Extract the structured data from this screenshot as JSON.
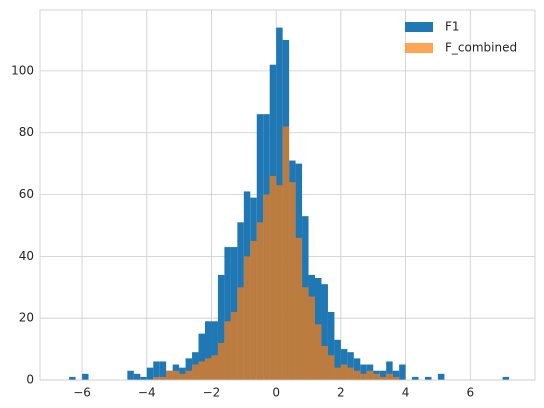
{
  "chart_data": {
    "type": "histogram",
    "series": [
      {
        "name": "F1",
        "color": "#1f77b4",
        "alpha": 1,
        "bins": [
          -6.6,
          -6.4,
          -6.2,
          -6.0,
          -5.8,
          -5.6,
          -5.4,
          -5.2,
          -5.0,
          -4.8,
          -4.6,
          -4.4,
          -4.2,
          -4.0,
          -3.8,
          -3.6,
          -3.4,
          -3.2,
          -3.0,
          -2.8,
          -2.6,
          -2.4,
          -2.2,
          -2.0,
          -1.8,
          -1.6,
          -1.4,
          -1.2,
          -1.0,
          -0.8,
          -0.6,
          -0.4,
          -0.2,
          0.0,
          0.2,
          0.4,
          0.6,
          0.8,
          1.0,
          1.2,
          1.4,
          1.6,
          1.8,
          2.0,
          2.2,
          2.4,
          2.6,
          2.8,
          3.0,
          3.2,
          3.4,
          3.6,
          3.8,
          4.0,
          4.2,
          4.4,
          4.6,
          4.8,
          5.0,
          5.2,
          5.4,
          5.6,
          5.8,
          6.0,
          6.2,
          6.4,
          6.6,
          6.8,
          7.0,
          7.2,
          7.4
        ],
        "values": [
          0,
          1,
          0,
          2,
          0,
          0,
          0,
          0,
          0,
          0,
          3,
          2,
          1,
          4,
          6,
          6,
          3,
          5,
          4,
          7,
          9,
          15,
          19,
          19,
          34,
          43,
          43,
          51,
          61,
          59,
          86,
          86,
          102,
          114,
          110,
          71,
          70,
          53,
          34,
          33,
          31,
          22,
          13,
          10,
          9,
          7,
          5,
          5,
          3,
          3,
          6,
          3,
          5,
          0,
          1,
          0,
          1,
          0,
          2,
          0,
          0,
          0,
          0,
          0,
          0,
          0,
          0,
          0,
          1,
          0
        ]
      },
      {
        "name": "F_combined",
        "color": "#ff7f0e",
        "alpha": 0.7,
        "bins": [
          -4.0,
          -3.8,
          -3.6,
          -3.4,
          -3.2,
          -3.0,
          -2.8,
          -2.6,
          -2.4,
          -2.2,
          -2.0,
          -1.8,
          -1.6,
          -1.4,
          -1.2,
          -1.0,
          -0.8,
          -0.6,
          -0.4,
          -0.2,
          0.0,
          0.2,
          0.4,
          0.6,
          0.8,
          1.0,
          1.2,
          1.4,
          1.6,
          1.8,
          2.0,
          2.2,
          2.4,
          2.6,
          2.8,
          3.0,
          3.2,
          3.4,
          3.6,
          3.8
        ],
        "values": [
          0,
          1,
          1,
          3,
          3,
          2,
          3,
          5,
          6,
          7,
          8,
          12,
          19,
          22,
          30,
          40,
          45,
          51,
          60,
          66,
          63,
          82,
          64,
          46,
          30,
          27,
          18,
          11,
          8,
          4,
          5,
          4,
          3,
          2,
          3,
          2,
          1,
          2,
          1
        ]
      }
    ],
    "xlim": [
      -7.3,
      8.0
    ],
    "xticks": [
      {
        "value": -6,
        "label": "−6"
      },
      {
        "value": -4,
        "label": "−4"
      },
      {
        "value": -2,
        "label": "−2"
      },
      0,
      2,
      4,
      6
    ],
    "ylim": [
      0,
      119.7
    ],
    "yticks": [
      0,
      20,
      40,
      60,
      80,
      100
    ],
    "grid": true,
    "legend": "upper right"
  }
}
